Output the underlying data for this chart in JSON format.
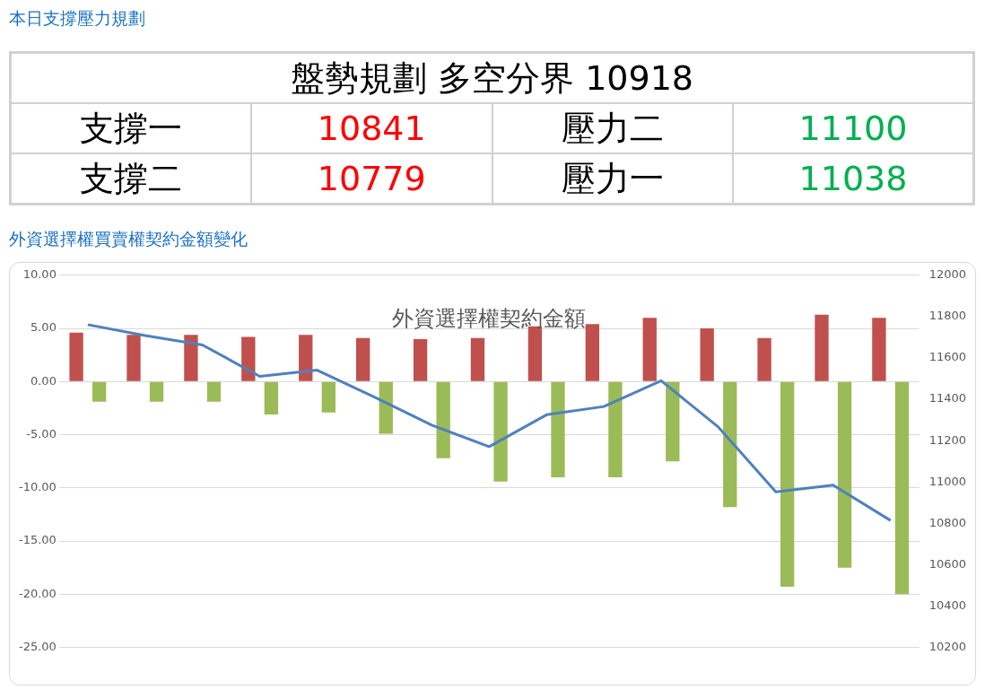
{
  "chart_data": [
    {
      "type": "other",
      "title": "本日支撐壓力規劃",
      "annotations": [
        "盤勢規劃 多空分界 10918",
        "支撐一",
        "10841",
        "壓力二",
        "11100",
        "支撐二",
        "10779",
        "壓力一",
        "11038"
      ]
    },
    {
      "type": "bar",
      "title": "外資選擇權契約金額",
      "subtitle": "外資選擇權買賣權契約金額變化",
      "categories": [
        null,
        null,
        null,
        null,
        null,
        null,
        null,
        null,
        null,
        null,
        null,
        null,
        null,
        null,
        null
      ],
      "series": [
        {
          "type": "bar",
          "color": "#c0504d",
          "values": [
            4.6,
            4.4,
            4.4,
            4.2,
            4.4,
            4.1,
            4.0,
            4.1,
            5.2,
            5.4,
            6.0,
            5.0,
            4.1,
            6.3,
            6.0
          ]
        },
        {
          "type": "bar",
          "color": "#9bbb59",
          "values": [
            -1.9,
            -1.9,
            -1.9,
            -3.1,
            -2.9,
            -4.9,
            -7.2,
            -9.4,
            -9.0,
            -9.0,
            -7.5,
            -11.8,
            -19.3,
            -17.5,
            -20.0
          ]
        },
        {
          "type": "line",
          "axis": "y2",
          "color": "#4f81bd",
          "values": [
            11761,
            11708,
            11663,
            11511,
            11541,
            11411,
            11275,
            11171,
            11325,
            11365,
            11490,
            11265,
            10952,
            10985,
            10814
          ]
        }
      ],
      "ylim": [
        -25,
        10
      ],
      "yticks": [
        {
          "value": -25,
          "label": "-25.00"
        },
        {
          "value": -20,
          "label": "-20.00"
        },
        {
          "value": -15,
          "label": "-15.00"
        },
        {
          "value": -10,
          "label": "-10.00"
        },
        {
          "value": -5,
          "label": "-5.00"
        },
        {
          "value": 0,
          "label": "0.00"
        },
        {
          "value": 5,
          "label": "5.00"
        },
        {
          "value": 10,
          "label": "10.00"
        }
      ],
      "y2lim": [
        10200,
        12000
      ],
      "y2ticks": [
        10200,
        10400,
        10600,
        10800,
        11000,
        11200,
        11400,
        11600,
        11800,
        12000
      ],
      "grid": "y",
      "legend": false,
      "marker": "none",
      "line_style": "solid"
    }
  ]
}
